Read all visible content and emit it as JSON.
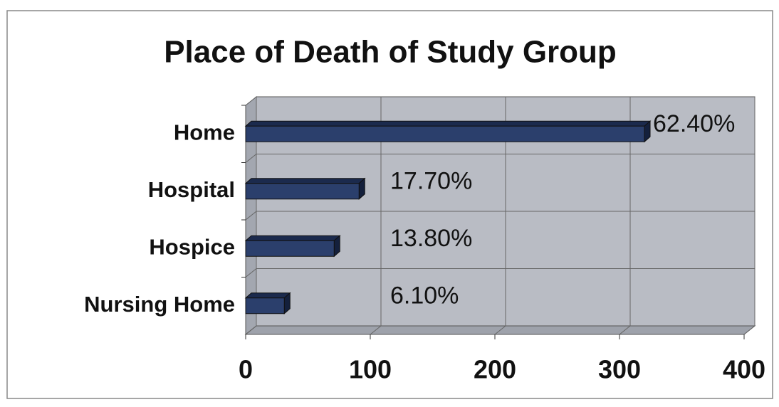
{
  "chart_data": {
    "type": "bar",
    "orientation": "horizontal",
    "title": "Place of Death of Study Group",
    "categories": [
      "Home",
      "Hospital",
      "Hospice",
      "Nursing Home"
    ],
    "values": [
      320,
      91,
      71,
      31
    ],
    "value_labels": [
      "62.40%",
      "17.70%",
      "13.80%",
      "6.10%"
    ],
    "color": "#2b3f6c",
    "xlim": [
      0,
      400
    ],
    "xticks": [
      0,
      100,
      200,
      300,
      400
    ],
    "grid": true
  }
}
